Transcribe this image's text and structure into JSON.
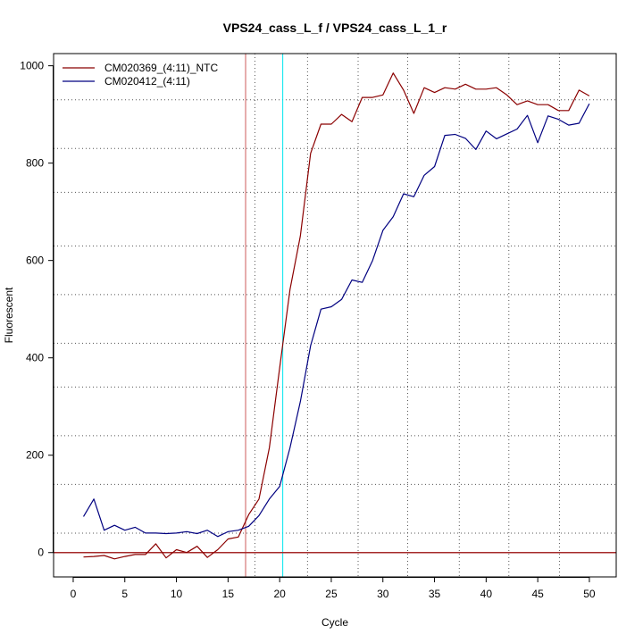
{
  "chart_data": {
    "type": "line",
    "title": "VPS24_cass_L_f / VPS24_cass_L_1_r",
    "xlabel": "Cycle",
    "ylabel": "Fluorescent",
    "xlim": [
      -1.9,
      52.6
    ],
    "ylim": [
      -50,
      1025
    ],
    "x_ticks": [
      0,
      5,
      10,
      15,
      20,
      25,
      30,
      35,
      40,
      45,
      50
    ],
    "y_ticks": [
      0,
      200,
      400,
      600,
      800,
      1000
    ],
    "grid": {
      "dotted_vertical_x": [
        17.6,
        22.7,
        27.6,
        32.4,
        37.4,
        42.2,
        47.1
      ],
      "dotted_horizontal_y": [
        40,
        140,
        240,
        340,
        430,
        530,
        630,
        740,
        830,
        930
      ]
    },
    "threshold_y": 0,
    "threshold_color": "#a52a2a",
    "threshold_lines": [
      {
        "x": 16.7,
        "color": "#cd5c5c"
      },
      {
        "x": 20.3,
        "color": "#00e5ee"
      }
    ],
    "legend_position": "top-left",
    "series": [
      {
        "name": "CM020369_(4:11)_NTC",
        "color": "#8b0000",
        "x": [
          1,
          2,
          3,
          4,
          5,
          6,
          7,
          8,
          9,
          10,
          11,
          12,
          13,
          14,
          15,
          16,
          17,
          18,
          19,
          20,
          21,
          22,
          23,
          24,
          25,
          26,
          27,
          28,
          29,
          30,
          31,
          32,
          33,
          34,
          35,
          36,
          37,
          38,
          39,
          40,
          41,
          42,
          43,
          44,
          45,
          46,
          47,
          48,
          49,
          50
        ],
        "y": [
          -9,
          -8,
          -6,
          -13,
          -8,
          -4,
          -4,
          18,
          -11,
          6,
          0,
          13,
          -10,
          6,
          28,
          32,
          78,
          110,
          215,
          380,
          540,
          650,
          820,
          880,
          880,
          900,
          885,
          935,
          935,
          940,
          985,
          950,
          902,
          955,
          945,
          955,
          952,
          962,
          952,
          952,
          955,
          940,
          920,
          928,
          920,
          920,
          908,
          908,
          950,
          938
        ]
      },
      {
        "name": "CM020412_(4:11)",
        "color": "#000080",
        "x": [
          1,
          2,
          3,
          4,
          5,
          6,
          7,
          8,
          9,
          10,
          11,
          12,
          13,
          14,
          15,
          16,
          17,
          18,
          19,
          20,
          21,
          22,
          23,
          24,
          25,
          26,
          27,
          28,
          29,
          30,
          31,
          32,
          33,
          34,
          35,
          36,
          37,
          38,
          39,
          40,
          41,
          42,
          43,
          44,
          45,
          46,
          47,
          48,
          49,
          50
        ],
        "y": [
          74,
          110,
          46,
          56,
          46,
          52,
          40,
          40,
          39,
          40,
          43,
          39,
          46,
          33,
          43,
          46,
          54,
          76,
          110,
          136,
          215,
          310,
          425,
          500,
          505,
          520,
          560,
          555,
          600,
          662,
          690,
          737,
          731,
          775,
          793,
          857,
          859,
          851,
          828,
          866,
          850,
          860,
          870,
          898,
          842,
          897,
          890,
          878,
          882,
          922
        ]
      }
    ]
  }
}
